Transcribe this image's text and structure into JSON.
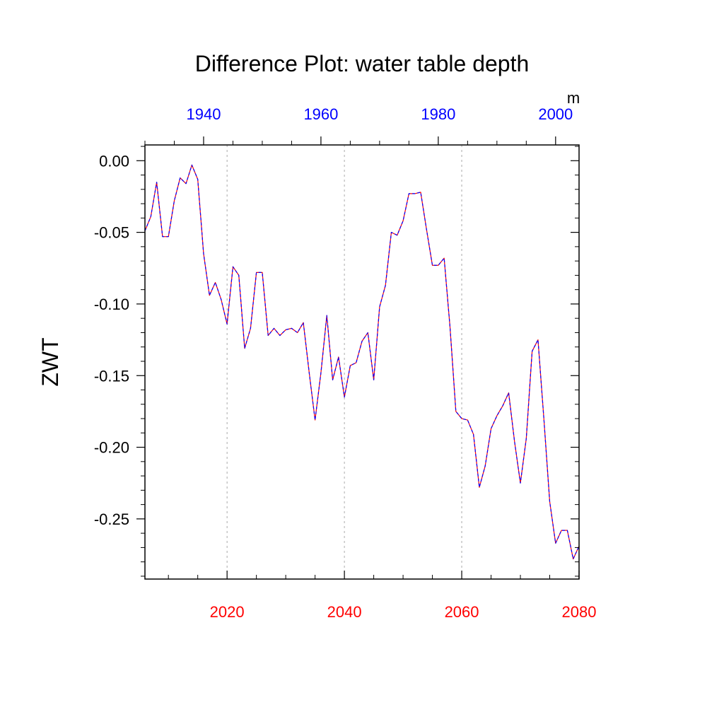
{
  "chart_data": {
    "type": "line",
    "title": "Difference Plot: water table depth",
    "ylabel": "ZWT",
    "units": "m",
    "ylim": [
      -0.292,
      0.011
    ],
    "yticks": [
      0.0,
      -0.05,
      -0.1,
      -0.15,
      -0.2,
      -0.25
    ],
    "ytick_labels": [
      "0.00",
      "-0.05",
      "-0.10",
      "-0.15",
      "-0.20",
      "-0.25"
    ],
    "x_bottom": {
      "range": [
        2006,
        2080
      ],
      "ticks": [
        2020,
        2040,
        2060,
        2080
      ],
      "tick_labels": [
        "2020",
        "2040",
        "2060",
        "2080"
      ],
      "color": "#ff0000"
    },
    "x_top": {
      "range": [
        1930,
        2004
      ],
      "ticks": [
        1940,
        1960,
        1980,
        2000
      ],
      "tick_labels": [
        "1940",
        "1960",
        "1980",
        "2000"
      ],
      "color": "#0000ff"
    },
    "gridlines_x": [
      2020,
      2040,
      2060
    ],
    "series": [
      {
        "name": "difference",
        "line_colors": [
          "#ff0000",
          "#0000ff"
        ],
        "x": [
          2006,
          2007,
          2008,
          2009,
          2010,
          2011,
          2012,
          2013,
          2014,
          2015,
          2016,
          2017,
          2018,
          2019,
          2020,
          2021,
          2022,
          2023,
          2024,
          2025,
          2026,
          2027,
          2028,
          2029,
          2030,
          2031,
          2032,
          2033,
          2034,
          2035,
          2036,
          2037,
          2038,
          2039,
          2040,
          2041,
          2042,
          2043,
          2044,
          2045,
          2046,
          2047,
          2048,
          2049,
          2050,
          2051,
          2052,
          2053,
          2054,
          2055,
          2056,
          2057,
          2058,
          2059,
          2060,
          2061,
          2062,
          2063,
          2064,
          2065,
          2066,
          2067,
          2068,
          2069,
          2070,
          2071,
          2072,
          2073,
          2074,
          2075,
          2076,
          2077,
          2078,
          2079,
          2080
        ],
        "values": [
          -0.049,
          -0.039,
          -0.015,
          -0.053,
          -0.053,
          -0.028,
          -0.012,
          -0.016,
          -0.003,
          -0.013,
          -0.065,
          -0.094,
          -0.085,
          -0.097,
          -0.114,
          -0.074,
          -0.08,
          -0.131,
          -0.117,
          -0.078,
          -0.078,
          -0.122,
          -0.117,
          -0.122,
          -0.118,
          -0.117,
          -0.12,
          -0.113,
          -0.148,
          -0.181,
          -0.148,
          -0.108,
          -0.153,
          -0.137,
          -0.165,
          -0.143,
          -0.141,
          -0.126,
          -0.12,
          -0.153,
          -0.102,
          -0.087,
          -0.05,
          -0.052,
          -0.042,
          -0.023,
          -0.023,
          -0.022,
          -0.048,
          -0.073,
          -0.073,
          -0.068,
          -0.116,
          -0.175,
          -0.18,
          -0.181,
          -0.191,
          -0.228,
          -0.213,
          -0.187,
          -0.178,
          -0.171,
          -0.162,
          -0.196,
          -0.225,
          -0.194,
          -0.133,
          -0.125,
          -0.18,
          -0.238,
          -0.267,
          -0.258,
          -0.258,
          -0.278,
          -0.269
        ]
      }
    ]
  }
}
